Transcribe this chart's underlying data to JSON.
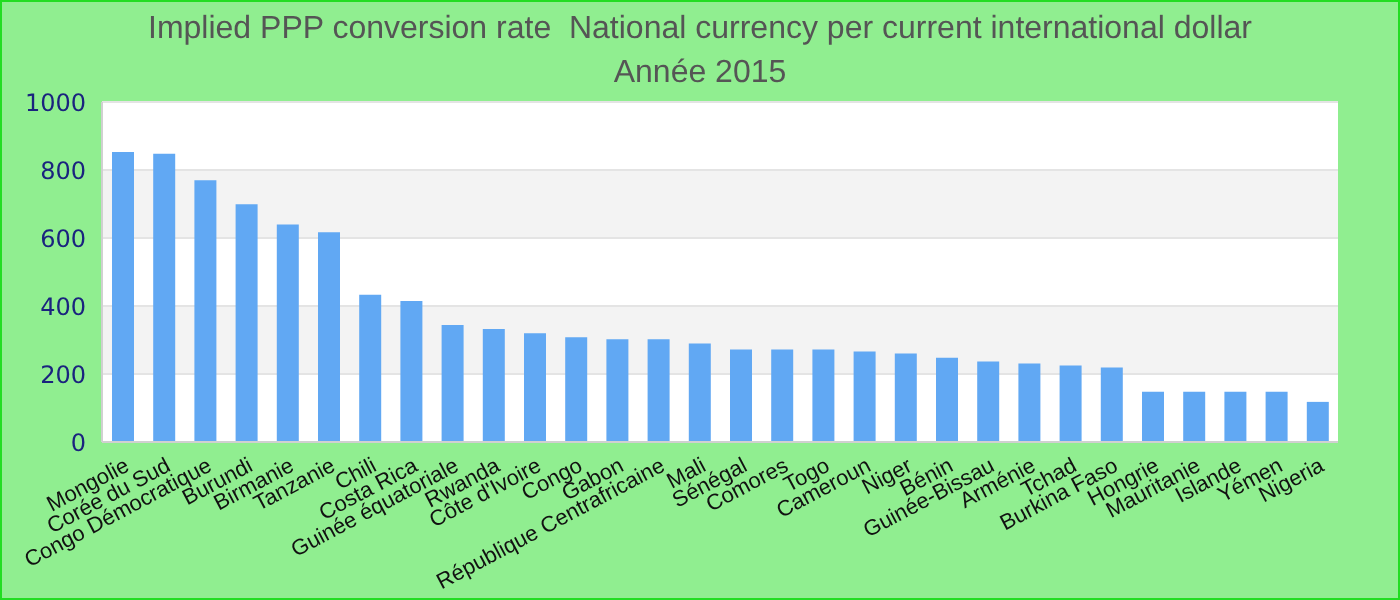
{
  "chart_data": {
    "type": "bar",
    "title": "Implied PPP conversion rate  National currency per current international dollar",
    "subtitle": "Année 2015",
    "categories": [
      "Mongolie",
      "Corée du Sud",
      "Congo Démocratique",
      "Burundi",
      "Birmanie",
      "Tanzanie",
      "Chili",
      "Costa Rica",
      "Guinée équatoriale",
      "Rwanda",
      "Côte d'Ivoire",
      "Congo",
      "Gabon",
      "République Centrafricaine",
      "Mali",
      "Sénégal",
      "Comores",
      "Togo",
      "Cameroun",
      "Niger",
      "Bénin",
      "Guinée-Bissau",
      "Arménie",
      "Tchad",
      "Burkina Faso",
      "Hongrie",
      "Mauritanie",
      "Islande",
      "Yémen",
      "Nigeria"
    ],
    "values": [
      853,
      848,
      770,
      699,
      640,
      617,
      433,
      415,
      344,
      332,
      320,
      308,
      302,
      302,
      290,
      272,
      272,
      272,
      266,
      260,
      248,
      237,
      231,
      225,
      219,
      148,
      148,
      148,
      148,
      118
    ],
    "color": "#61a8f3",
    "ylim": [
      0,
      1000
    ],
    "yticks": [
      0,
      200,
      400,
      600,
      800,
      1000
    ],
    "grid": "y"
  }
}
